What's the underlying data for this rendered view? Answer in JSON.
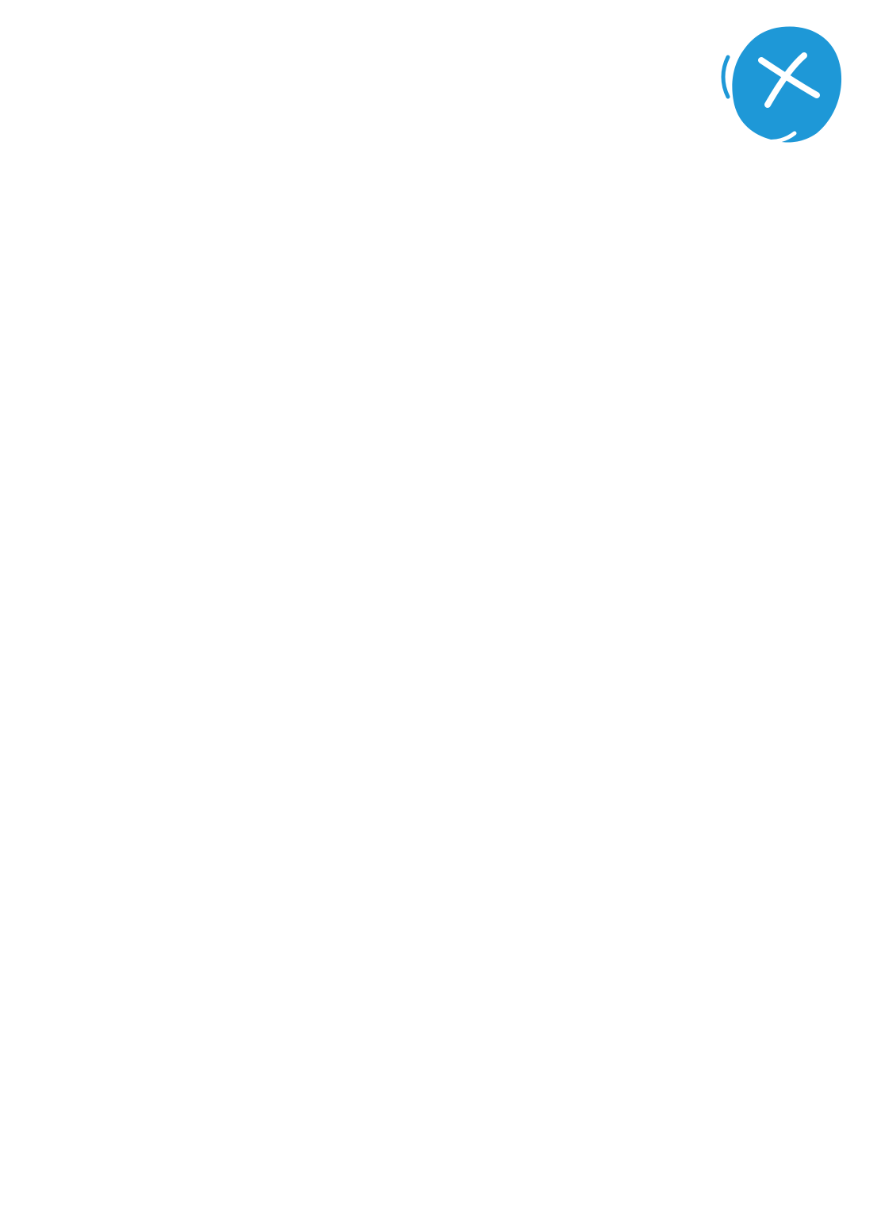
{
  "close_button": {
    "icon": "close-icon",
    "accent_color": "#1e98d7",
    "glyph_color": "#ffffff"
  }
}
